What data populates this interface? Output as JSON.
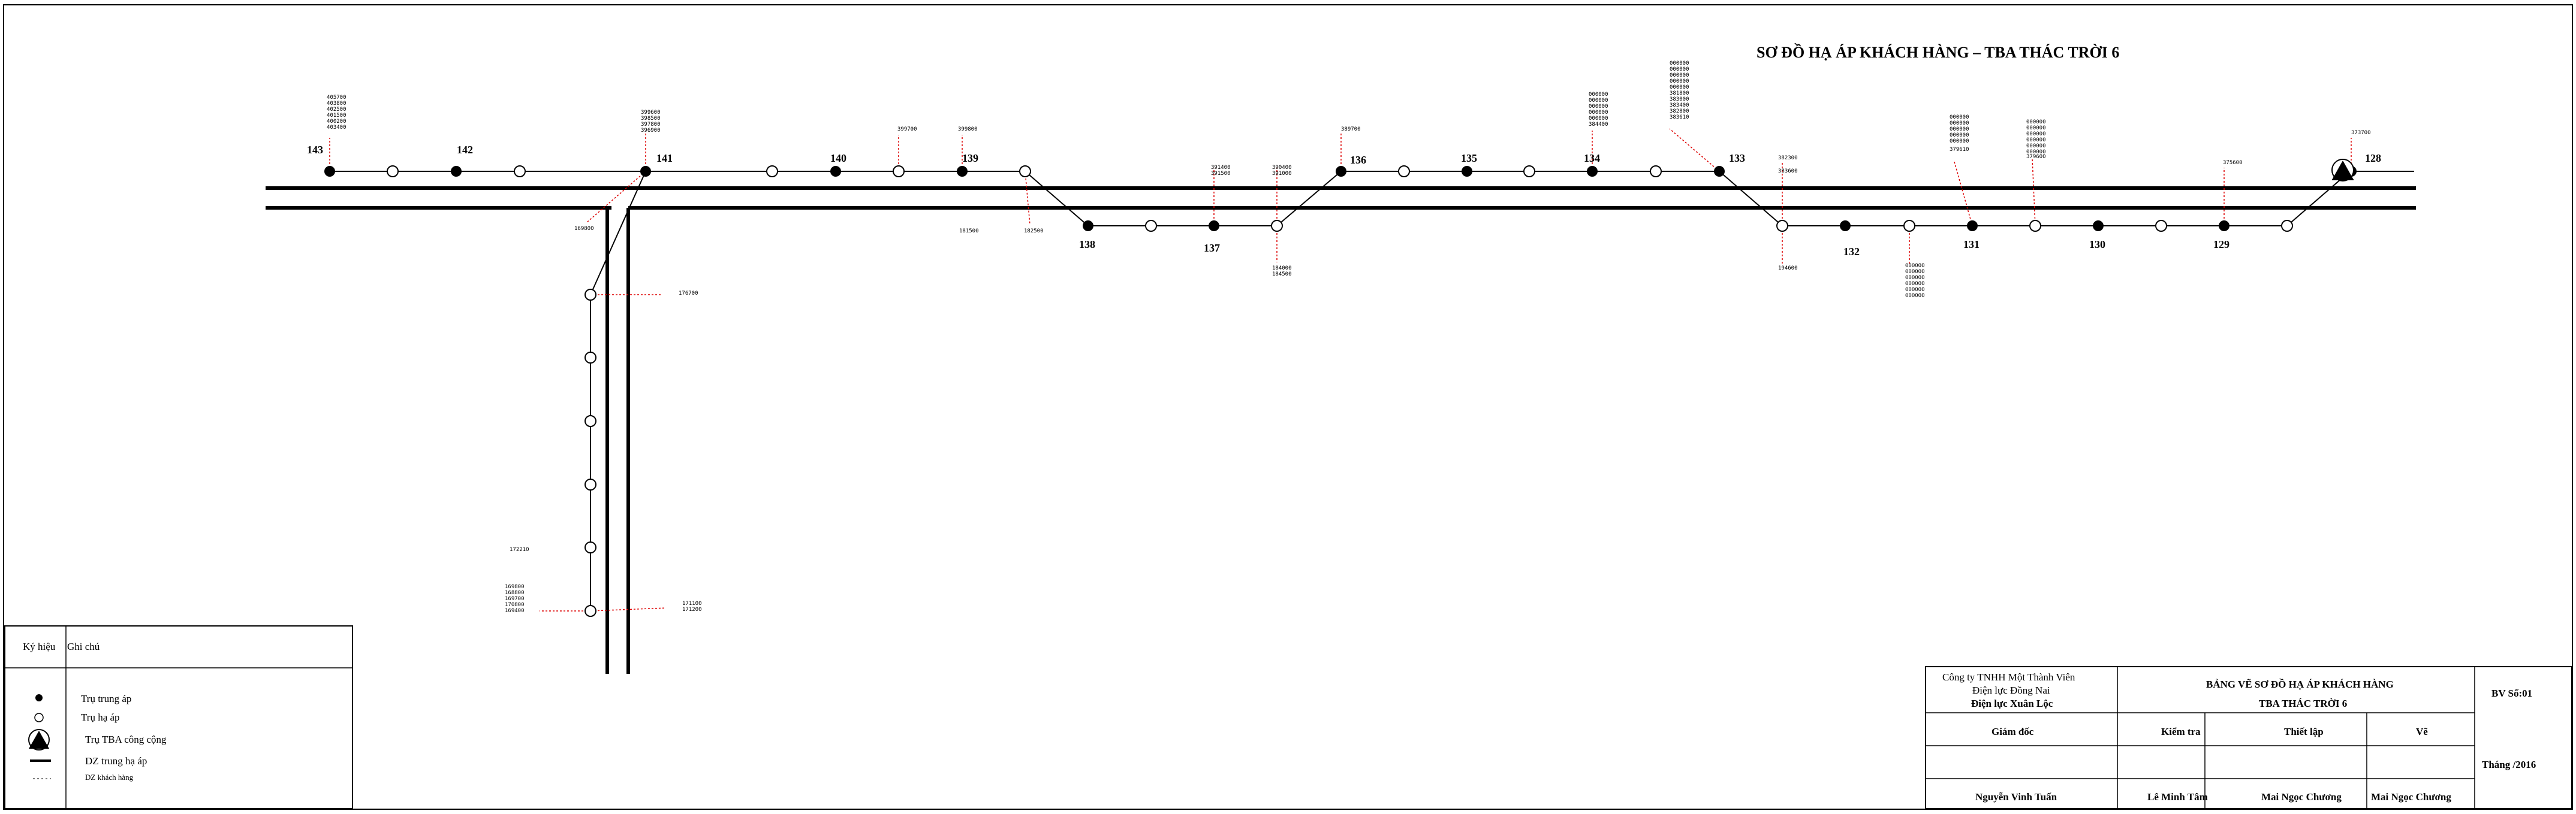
{
  "title": "SƠ ĐỒ HẠ ÁP KHÁCH HÀNG – TBA THÁC TRỜI 6",
  "poles": {
    "p143": "143",
    "p142": "142",
    "p141": "141",
    "p140": "140",
    "p139": "139",
    "p138": "138",
    "p137": "137",
    "p136": "136",
    "p135": "135",
    "p134": "134",
    "p133": "133",
    "p132": "132",
    "p131": "131",
    "p130": "130",
    "p129": "129",
    "p128": "128"
  },
  "meters": {
    "m143": [
      "405700",
      "403800",
      "402500",
      "401500",
      "400200",
      "403400"
    ],
    "m141": [
      "399600",
      "398500",
      "397800",
      "396900"
    ],
    "m141b": "169800",
    "m140": "399700",
    "m139a": "399800",
    "m139b": "181500",
    "m139c": "182500",
    "m137a": [
      "391400",
      "391500"
    ],
    "m137b": [
      "390400",
      "391000"
    ],
    "m137c": [
      "184000",
      "184500"
    ],
    "m136": "389700",
    "m134": [
      "000000",
      "000000",
      "000000",
      "000000",
      "000000",
      "384400"
    ],
    "m133": [
      "000000",
      "000000",
      "000000",
      "000000",
      "000000",
      "381800",
      "383000",
      "383400",
      "382800",
      "383610"
    ],
    "m132a": [
      "382300",
      "383600"
    ],
    "m132b": "194600",
    "m132c": [
      "000000",
      "000000",
      "000000",
      "000000",
      "000000",
      "000000"
    ],
    "m131a": [
      "000000",
      "000000",
      "000000",
      "000000",
      "000000",
      "379610"
    ],
    "m131b": [
      "000000",
      "000000",
      "000000",
      "000000",
      "000000",
      "000000",
      "379600"
    ],
    "m129": "375600",
    "m128": "373700",
    "mv1": "176700",
    "mv2": "172210",
    "mv3": [
      "169800",
      "168800",
      "169700",
      "170800",
      "169400"
    ],
    "mv4": [
      "171100",
      "171200"
    ]
  },
  "legend": {
    "header_symbol": "Ký hiệu",
    "header_note": "Ghi chú",
    "items": [
      "Trụ trung áp",
      "Trụ hạ áp",
      "Trụ TBA công cộng",
      "DZ trung hạ áp",
      "DZ khách hàng"
    ]
  },
  "title_block": {
    "company_line1": "Công ty TNHH Một Thành Viên",
    "company_line2": "Điện lực Đồng Nai",
    "company_line3": "Điện lực Xuân Lộc",
    "drawing_title1": "BẢNG VẼ SƠ ĐỒ HẠ ÁP KHÁCH HÀNG",
    "drawing_title2": "TBA THÁC TRỜI 6",
    "drawing_no": "BV Số:01",
    "role_director": "Giám đốc",
    "role_check": "Kiểm tra",
    "role_setup": "Thiết lập",
    "role_draw": "Vẽ",
    "month": "Tháng   /2016",
    "name_director": "Nguyễn Vinh Tuấn",
    "name_check": "Lê Minh Tâm",
    "name_setup": "Mai Ngọc Chương",
    "name_draw": "Mai Ngọc Chương"
  }
}
